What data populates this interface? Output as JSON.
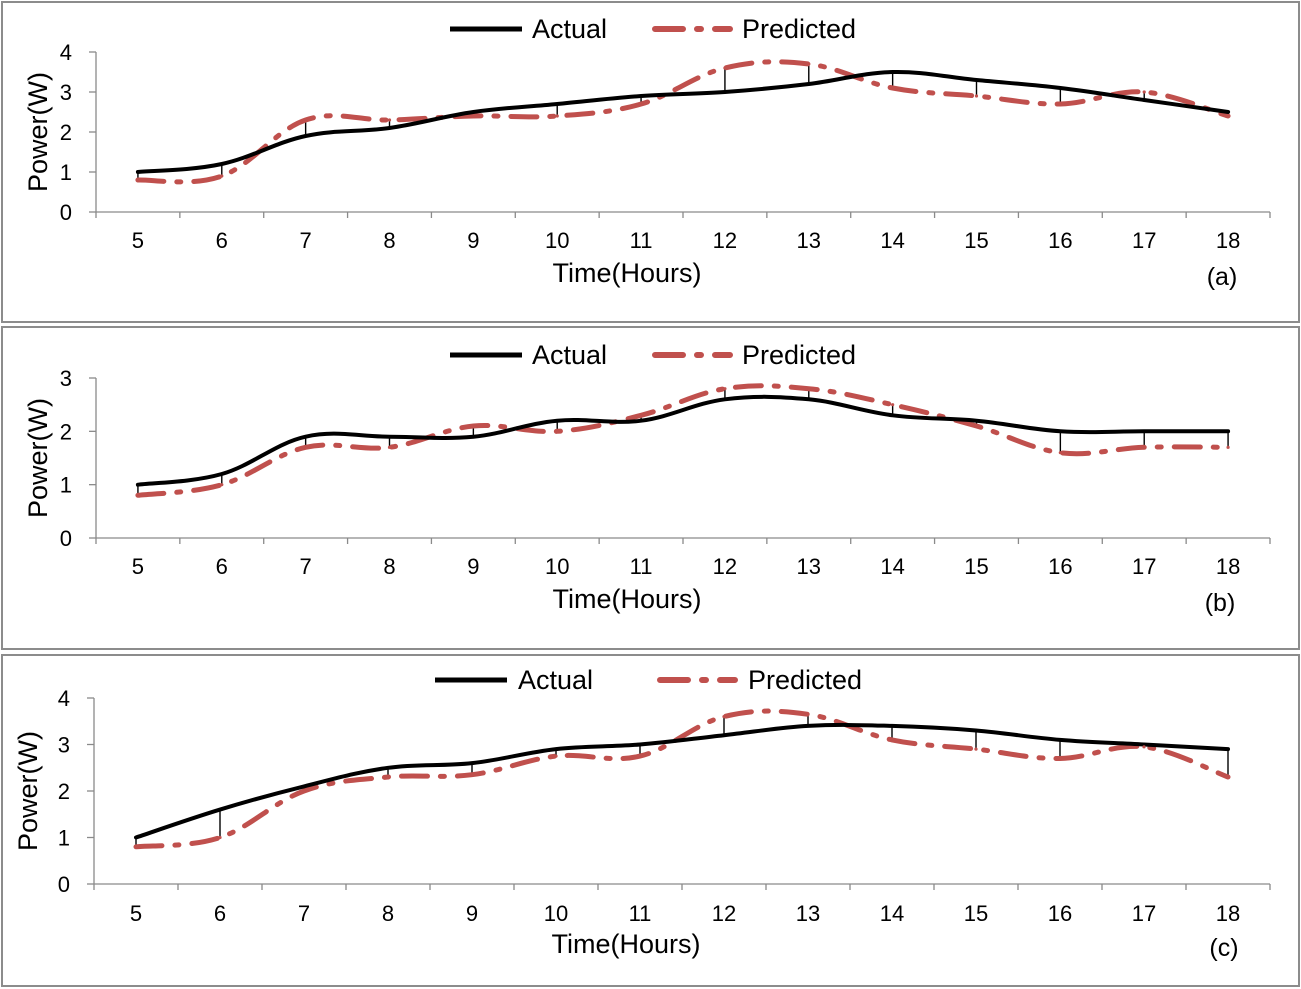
{
  "legend": {
    "actual_label": "Actual",
    "predicted_label": "Predicted"
  },
  "colors": {
    "actual": "#000000",
    "predicted": "#C0504D",
    "axis": "#8a8a8a",
    "frame": "#8c8c8c"
  },
  "chart_data": [
    {
      "type": "line",
      "panel_label": "(a)",
      "xlabel": "Time(Hours)",
      "ylabel": "Power(W)",
      "x": [
        5,
        6,
        7,
        8,
        9,
        10,
        11,
        12,
        13,
        14,
        15,
        16,
        17,
        18
      ],
      "ylim": [
        0,
        4
      ],
      "yticks": [
        0,
        1,
        2,
        3,
        4
      ],
      "grid": false,
      "legend_position": "top",
      "series": [
        {
          "name": "Actual",
          "values": [
            1.0,
            1.2,
            1.9,
            2.1,
            2.5,
            2.7,
            2.9,
            3.0,
            3.2,
            3.5,
            3.3,
            3.1,
            2.8,
            2.5
          ]
        },
        {
          "name": "Predicted",
          "values": [
            0.8,
            0.9,
            2.3,
            2.3,
            2.4,
            2.4,
            2.7,
            3.6,
            3.7,
            3.1,
            2.9,
            2.7,
            3.0,
            2.4
          ]
        }
      ]
    },
    {
      "type": "line",
      "panel_label": "(b)",
      "xlabel": "Time(Hours)",
      "ylabel": "Power(W)",
      "x": [
        5,
        6,
        7,
        8,
        9,
        10,
        11,
        12,
        13,
        14,
        15,
        16,
        17,
        18
      ],
      "ylim": [
        0,
        3
      ],
      "yticks": [
        0,
        1,
        2,
        3
      ],
      "grid": false,
      "legend_position": "top",
      "series": [
        {
          "name": "Actual",
          "values": [
            1.0,
            1.2,
            1.9,
            1.9,
            1.9,
            2.2,
            2.2,
            2.6,
            2.6,
            2.3,
            2.2,
            2.0,
            2.0,
            2.0
          ]
        },
        {
          "name": "Predicted",
          "values": [
            0.8,
            1.0,
            1.7,
            1.7,
            2.1,
            2.0,
            2.3,
            2.8,
            2.8,
            2.5,
            2.1,
            1.6,
            1.7,
            1.7
          ]
        }
      ]
    },
    {
      "type": "line",
      "panel_label": "(c)",
      "xlabel": "Time(Hours)",
      "ylabel": "Power(W)",
      "x": [
        5,
        6,
        7,
        8,
        9,
        10,
        11,
        12,
        13,
        14,
        15,
        16,
        17,
        18
      ],
      "ylim": [
        0,
        4
      ],
      "yticks": [
        0,
        1,
        2,
        3,
        4
      ],
      "grid": false,
      "legend_position": "top",
      "series": [
        {
          "name": "Actual",
          "values": [
            1.0,
            1.6,
            2.1,
            2.5,
            2.6,
            2.9,
            3.0,
            3.2,
            3.4,
            3.4,
            3.3,
            3.1,
            3.0,
            2.9
          ]
        },
        {
          "name": "Predicted",
          "values": [
            0.8,
            1.0,
            2.0,
            2.3,
            2.35,
            2.75,
            2.75,
            3.6,
            3.65,
            3.1,
            2.9,
            2.7,
            2.95,
            2.3
          ]
        }
      ]
    }
  ]
}
